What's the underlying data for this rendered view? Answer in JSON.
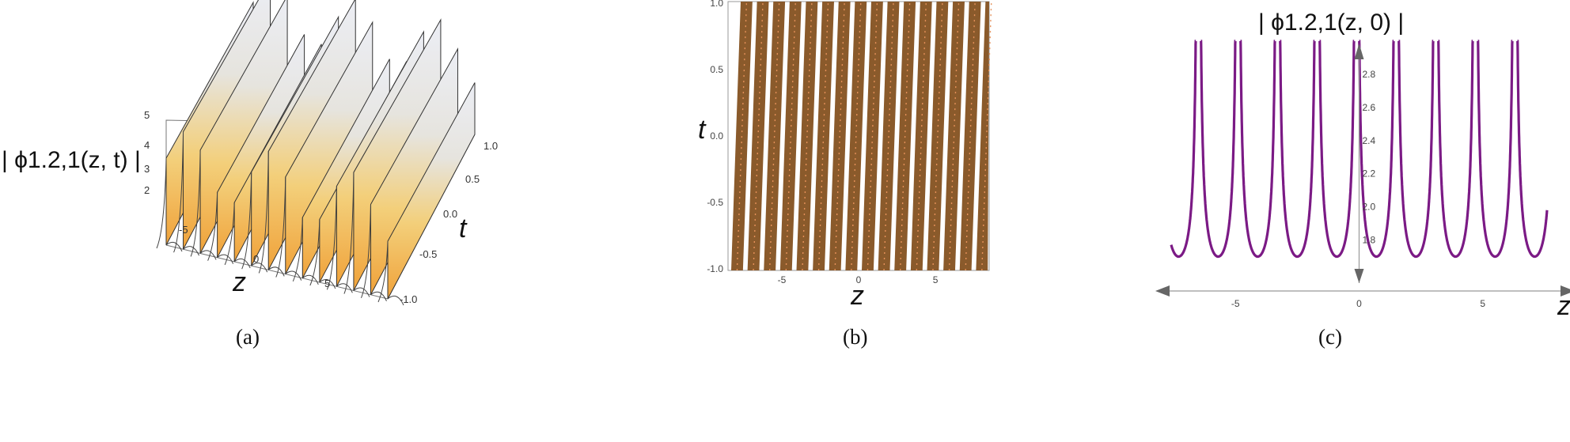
{
  "chart_data": [
    {
      "id": "a",
      "type": "surface",
      "caption": "(a)",
      "zlabel": "| ϕ1.2,1(z, t) |",
      "xlabel": "z",
      "ylabel": "t",
      "xticks": [
        "-5",
        "0",
        "5"
      ],
      "yticks": [
        "1.0",
        "0.5",
        "0.0",
        "-0.5",
        "-1.0"
      ],
      "zticks": [
        "2",
        "3",
        "4",
        "5"
      ],
      "xlim": [
        -8.5,
        8.5
      ],
      "ylim": [
        -1.0,
        1.0
      ],
      "zlim": [
        1.6,
        5.0
      ],
      "colors": {
        "low": "#f0a23a",
        "mid": "#e8dcb0",
        "high": "#e6e7ef",
        "edge": "#333333"
      }
    },
    {
      "id": "b",
      "type": "heatmap",
      "caption": "(b)",
      "xlabel": "z",
      "ylabel": "t",
      "xticks": [
        "-5",
        "0",
        "5"
      ],
      "yticks": [
        "1.0",
        "0.5",
        "0.0",
        "-0.5",
        "-1.0"
      ],
      "xlim": [
        -8.5,
        8.5
      ],
      "ylim": [
        -1.0,
        1.0
      ],
      "stripe_count": 16,
      "colors": {
        "fill": "#8a5a2b",
        "accent": "#e6915a",
        "gap": "#ffffff"
      }
    },
    {
      "id": "c",
      "type": "line",
      "caption": "(c)",
      "title": "| ϕ1.2,1(z, 0) |",
      "xlabel": "z",
      "xticks": [
        "-5",
        "0",
        "5"
      ],
      "yticks": [
        "1.8",
        "2.0",
        "2.2",
        "2.4",
        "2.6",
        "2.8"
      ],
      "xlim": [
        -7.6,
        7.6
      ],
      "ylim": [
        1.65,
        3.0
      ],
      "period": 1.6,
      "minimum": 1.7,
      "color": "#7b1a85"
    }
  ]
}
